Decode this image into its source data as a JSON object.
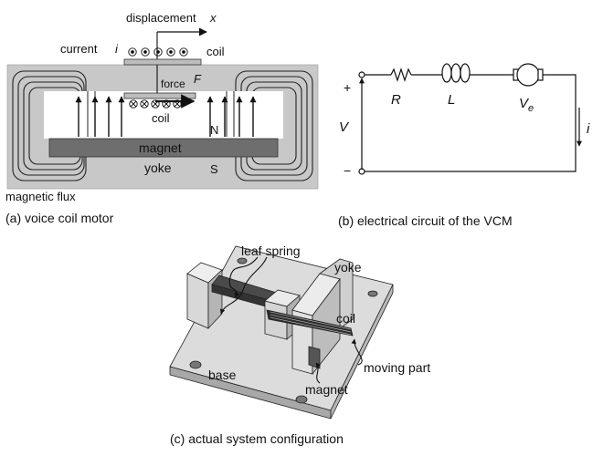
{
  "panel_a": {
    "displacement_label": "displacement",
    "displacement_var": "x",
    "current_label": "current",
    "current_var": "i",
    "top_coil_label": "coil",
    "force_label": "force",
    "force_var": "F",
    "inner_coil_label": "coil",
    "magnet_label": "magnet",
    "yoke_label": "yoke",
    "north_label": "N",
    "south_label": "S",
    "flux_label": "magnetic flux",
    "caption": "(a) voice coil motor"
  },
  "panel_b": {
    "plus_label": "+",
    "minus_label": "−",
    "voltage_label": "V",
    "resistor_label": "R",
    "inductor_label": "L",
    "back_emf_label": "V",
    "back_emf_sub": "e",
    "current_label": "i",
    "caption": "(b) electrical circuit of the VCM"
  },
  "panel_c": {
    "leaf_spring_label": "leaf spring",
    "yoke_label": "yoke",
    "coil_label": "coil",
    "base_label": "base",
    "moving_part_label": "moving part",
    "magnet_label": "magnet",
    "caption": "(c) actual system configuration"
  },
  "colors": {
    "yoke_gray": "#c8c8c8",
    "magnet_gray": "#6e6e6e",
    "line": "#111111"
  }
}
